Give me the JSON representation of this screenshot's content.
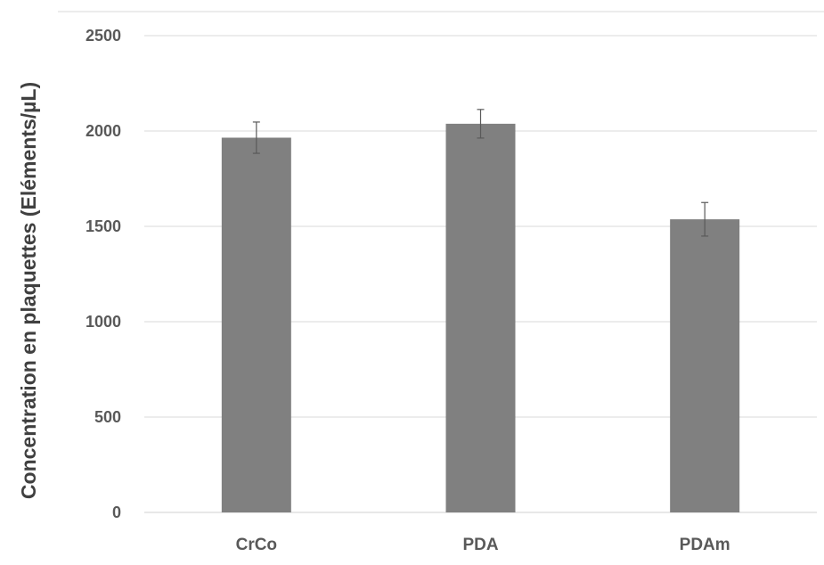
{
  "chart_data": {
    "type": "bar",
    "ylabel": "Concentration en plaquettes (Eléments/µL)",
    "xlabel": "",
    "categories": [
      "CrCo",
      "PDA",
      "PDAm"
    ],
    "series": [
      {
        "values": [
          1965,
          2038,
          1537
        ],
        "errors": [
          82,
          75,
          88
        ]
      }
    ],
    "ylim": [
      0,
      2500
    ],
    "yticks": [
      0,
      500,
      1000,
      1500,
      2000,
      2500
    ],
    "ytick_labels": [
      "0",
      "500",
      "1000",
      "1500",
      "2000",
      "2500"
    ],
    "grid": true,
    "legend": "none",
    "colors": {
      "bar": "#808080",
      "grid": "#d9d9d9",
      "error_bar": "#595959",
      "tick_text": "#595959",
      "label_text": "#404040"
    }
  }
}
